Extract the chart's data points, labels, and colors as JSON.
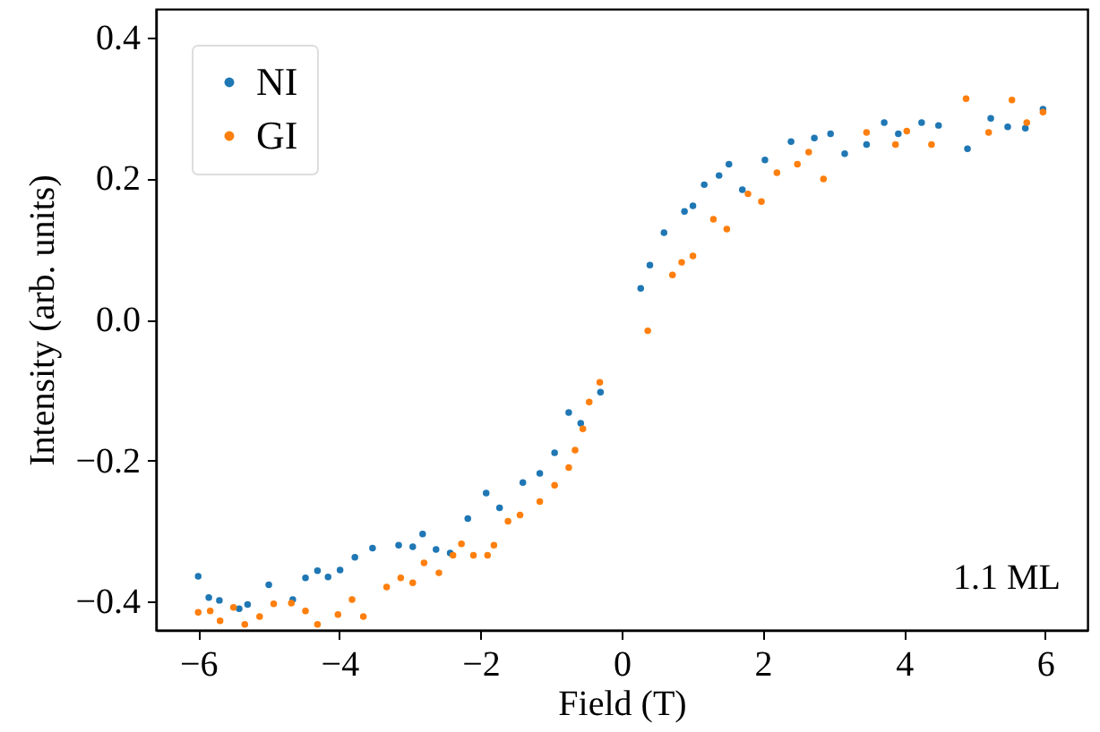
{
  "chart_data": {
    "type": "scatter",
    "xlabel": "Field (T)",
    "ylabel": "Intensity (arb. units)",
    "annotations": [
      "1.1 ML"
    ],
    "xlim": [
      -6.6,
      6.6
    ],
    "ylim": [
      -0.44,
      0.44
    ],
    "xticks": [
      {
        "value": -6,
        "label": "−6"
      },
      {
        "value": -4,
        "label": "−4"
      },
      {
        "value": -2,
        "label": "−2"
      },
      0,
      2,
      4,
      6
    ],
    "yticks": [
      {
        "value": -0.4,
        "label": "−0.4"
      },
      {
        "value": -0.2,
        "label": "−0.2"
      },
      {
        "value": 0,
        "label": "0.0"
      },
      0.2,
      0.4
    ],
    "grid": false,
    "legend": "top left",
    "marker": "circle",
    "series": [
      {
        "name": "NI",
        "color": "#1f77b4",
        "x": [
          -6.0,
          -5.85,
          -5.7,
          -5.42,
          -5.3,
          -5.0,
          -4.66,
          -4.48,
          -4.31,
          -4.16,
          -3.99,
          -3.78,
          -3.53,
          -3.16,
          -2.96,
          -2.82,
          -2.63,
          -2.43,
          -2.18,
          -1.92,
          -1.73,
          -1.4,
          -1.16,
          -0.95,
          -0.75,
          -0.58,
          -0.3,
          0.27,
          0.4,
          0.6,
          0.89,
          1.01,
          1.17,
          1.38,
          1.52,
          1.71,
          2.03,
          2.4,
          2.73,
          2.96,
          3.16,
          3.47,
          3.72,
          3.92,
          4.25,
          4.49,
          4.9,
          5.23,
          5.47,
          5.72,
          5.97
        ],
        "values": [
          -0.364,
          -0.394,
          -0.398,
          -0.41,
          -0.404,
          -0.376,
          -0.397,
          -0.366,
          -0.356,
          -0.365,
          -0.355,
          -0.337,
          -0.324,
          -0.32,
          -0.322,
          -0.304,
          -0.326,
          -0.331,
          -0.282,
          -0.246,
          -0.267,
          -0.231,
          -0.218,
          -0.189,
          -0.132,
          -0.147,
          -0.103,
          0.044,
          0.077,
          0.123,
          0.153,
          0.161,
          0.191,
          0.204,
          0.22,
          0.184,
          0.226,
          0.252,
          0.257,
          0.263,
          0.235,
          0.248,
          0.279,
          0.263,
          0.279,
          0.275,
          0.242,
          0.285,
          0.273,
          0.271,
          0.298
        ]
      },
      {
        "name": "GI",
        "color": "#ff7f0e",
        "x": [
          -6.0,
          -5.83,
          -5.69,
          -5.5,
          -5.34,
          -5.13,
          -4.93,
          -4.68,
          -4.48,
          -4.31,
          -4.02,
          -3.82,
          -3.66,
          -3.33,
          -3.13,
          -2.96,
          -2.8,
          -2.59,
          -2.39,
          -2.27,
          -2.1,
          -1.9,
          -1.81,
          -1.61,
          -1.44,
          -1.16,
          -0.95,
          -0.75,
          -0.66,
          -0.55,
          -0.46,
          -0.31,
          0.37,
          0.72,
          0.85,
          1.01,
          1.3,
          1.49,
          1.79,
          1.98,
          2.2,
          2.49,
          2.65,
          2.86,
          3.47,
          3.88,
          4.04,
          4.39,
          4.88,
          5.2,
          5.53,
          5.74,
          5.97
        ],
        "values": [
          -0.415,
          -0.413,
          -0.427,
          -0.408,
          -0.432,
          -0.421,
          -0.403,
          -0.402,
          -0.413,
          -0.432,
          -0.418,
          -0.397,
          -0.421,
          -0.379,
          -0.366,
          -0.373,
          -0.345,
          -0.359,
          -0.334,
          -0.318,
          -0.334,
          -0.334,
          -0.32,
          -0.286,
          -0.277,
          -0.258,
          -0.235,
          -0.21,
          -0.185,
          -0.155,
          -0.117,
          -0.089,
          -0.016,
          0.063,
          0.081,
          0.09,
          0.142,
          0.128,
          0.178,
          0.167,
          0.208,
          0.22,
          0.237,
          0.199,
          0.265,
          0.248,
          0.267,
          0.248,
          0.313,
          0.265,
          0.311,
          0.279,
          0.294
        ]
      }
    ]
  }
}
